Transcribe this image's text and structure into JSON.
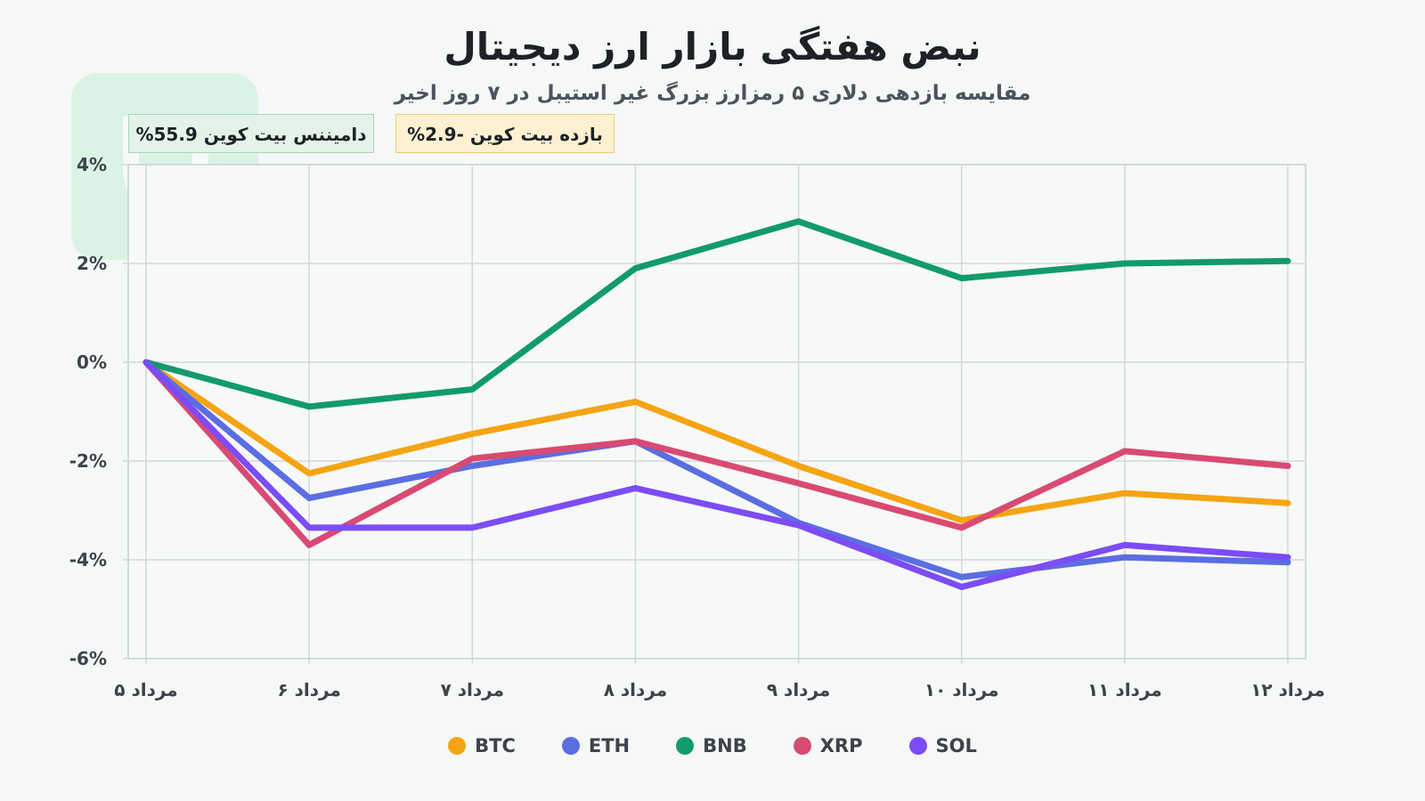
{
  "header": {
    "title": "نبض هفتگی بازار ارز دیجیتال",
    "subtitle": "مقایسه بازدهی دلاری ۵ رمزارز بزرگ غیر استیبل در ۷ روز اخیر"
  },
  "badges": {
    "dominance": "دامیننس بیت کوین 55.9%",
    "btc_return": "بازده بیت کوین -2.9%"
  },
  "chart_data": {
    "type": "line",
    "categories": [
      "مرداد ۵",
      "مرداد ۶",
      "مرداد ۷",
      "مرداد ۸",
      "مرداد ۹",
      "مرداد ۱۰",
      "مرداد ۱۱",
      "مرداد ۱۲"
    ],
    "ylim": [
      -6,
      4
    ],
    "yticks": [
      4,
      2,
      0,
      -2,
      -4,
      -6
    ],
    "ytick_labels": [
      "4%",
      "2%",
      "0%",
      "-2%",
      "-4%",
      "-6%"
    ],
    "grid": true,
    "legend_position": "bottom",
    "series": [
      {
        "name": "BTC",
        "color": "#f5a413",
        "values": [
          0,
          -2.25,
          -1.45,
          -0.8,
          -2.1,
          -3.2,
          -2.65,
          -2.85
        ]
      },
      {
        "name": "ETH",
        "color": "#5b6ee1",
        "values": [
          0,
          -2.75,
          -2.1,
          -1.6,
          -3.25,
          -4.35,
          -3.95,
          -4.05
        ]
      },
      {
        "name": "BNB",
        "color": "#129b6a",
        "values": [
          0,
          -0.9,
          -0.55,
          1.9,
          2.85,
          1.7,
          2.0,
          2.05
        ]
      },
      {
        "name": "XRP",
        "color": "#d94a72",
        "values": [
          0,
          -3.7,
          -1.95,
          -1.6,
          -2.45,
          -3.35,
          -1.8,
          -2.1
        ]
      },
      {
        "name": "SOL",
        "color": "#7c4cf5",
        "values": [
          0,
          -3.35,
          -3.35,
          -2.55,
          -3.3,
          -4.55,
          -3.7,
          -3.95
        ]
      }
    ]
  }
}
